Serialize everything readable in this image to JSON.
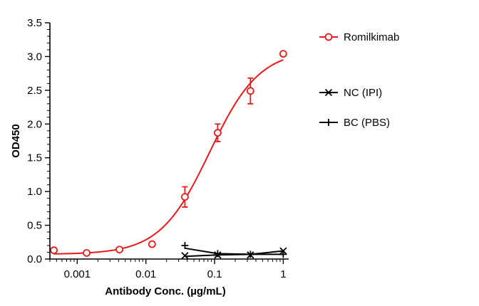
{
  "chart_data": {
    "type": "scatter",
    "title": "",
    "xlabel": "Antibody Conc. (µg/mL)",
    "ylabel": "OD450",
    "x_scale": "log",
    "xlim": [
      0.0004,
      1.2
    ],
    "ylim": [
      0,
      3.5
    ],
    "x_ticks": [
      0.001,
      0.01,
      0.1,
      1
    ],
    "x_tick_labels": [
      "0.001",
      "0.01",
      "0.1",
      "1"
    ],
    "y_ticks": [
      0,
      0.5,
      1,
      1.5,
      2,
      2.5,
      3,
      3.5
    ],
    "y_tick_labels": [
      "0.0",
      "0.5",
      "1.0",
      "1.5",
      "2.0",
      "2.5",
      "3.0",
      "3.5"
    ],
    "grid": false,
    "legend_position": "right",
    "series": [
      {
        "name": "Romilkimab",
        "color": "#e8191a",
        "marker": "open-circle",
        "x": [
          0.000457,
          0.00137,
          0.00412,
          0.0123,
          0.037,
          0.111,
          0.333,
          1
        ],
        "y": [
          0.13,
          0.09,
          0.14,
          0.22,
          0.92,
          1.87,
          2.49,
          3.04
        ],
        "err": [
          0,
          0,
          0,
          0,
          0.15,
          0.13,
          0.19,
          0
        ],
        "fit": {
          "bottom": 0.07,
          "top": 3.1,
          "ec50": 0.085,
          "hill": 1.2
        }
      },
      {
        "name": "NC (IPI)",
        "color": "#000000",
        "marker": "x",
        "x": [
          0.037,
          0.111,
          0.333,
          1
        ],
        "y": [
          0.05,
          0.06,
          0.06,
          0.12
        ],
        "curve": [
          0.04,
          0.06,
          0.07,
          0.12
        ]
      },
      {
        "name": "BC (PBS)",
        "color": "#000000",
        "marker": "plus",
        "x": [
          0.037,
          0.111,
          0.333,
          1
        ],
        "y": [
          0.2,
          0.08,
          0.07,
          0.07
        ],
        "curve": [
          0.16,
          0.08,
          0.07,
          0.07
        ]
      }
    ]
  }
}
